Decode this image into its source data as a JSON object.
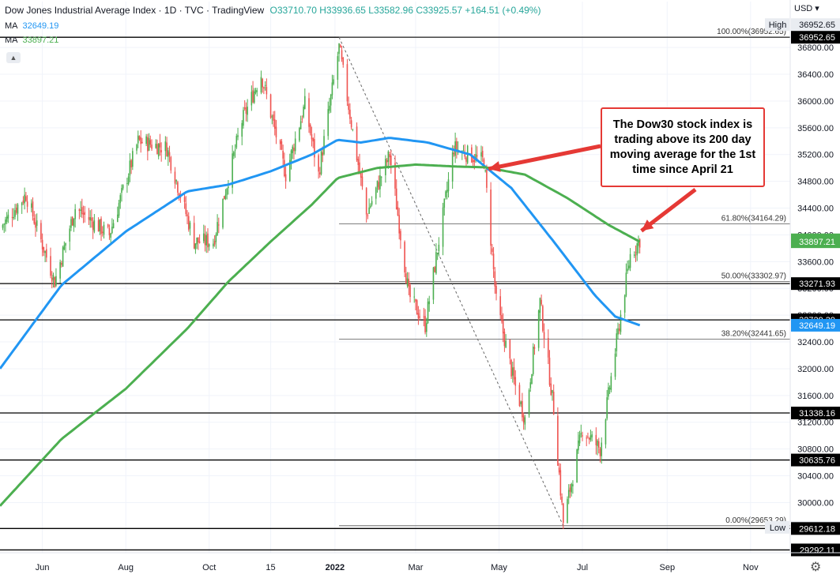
{
  "header": {
    "title": "Dow Jones Industrial Average Index · 1D · TVC · TradingView",
    "ohlc": "O33710.70 H33936.65 L33582.96 C33925.57 +164.51 (+0.49%)",
    "ma1_label": "MA",
    "ma1_value": "32649.19",
    "ma2_label": "MA",
    "ma2_value": "33897.21"
  },
  "currency": "USD",
  "collapse_icon": "chevron-up-icon",
  "settings_icon": "gear-icon",
  "annotation": "The Dow30 stock index is trading above its 200 day moving average for the 1st time since April 21",
  "colors": {
    "up": "#4caf50",
    "down": "#ef5350",
    "ma100": "#2196f3",
    "ma200": "#4caf50",
    "arrow": "#e53935"
  },
  "chart_data": {
    "type": "line",
    "title": "Dow Jones Industrial Average Index",
    "ylim": [
      29250,
      37250
    ],
    "y_ticks": [
      30000,
      30400,
      30800,
      31200,
      31600,
      32000,
      32400,
      32800,
      33200,
      33600,
      34000,
      34400,
      34800,
      35200,
      35600,
      36000,
      36400,
      36800
    ],
    "x_ticks": [
      "Jun",
      "Aug",
      "Oct",
      "15",
      "2022",
      "Mar",
      "May",
      "Jul",
      "Sep",
      "Nov"
    ],
    "series": [
      {
        "name": "MA",
        "role": "ma100",
        "x": [
          "2021-05-01",
          "2021-06-15",
          "2021-08-01",
          "2021-09-15",
          "2021-10-15",
          "2021-11-15",
          "2021-12-15",
          "2022-01-03",
          "2022-01-20",
          "2022-02-10",
          "2022-03-10",
          "2022-04-10",
          "2022-05-10",
          "2022-06-10",
          "2022-07-10",
          "2022-07-25",
          "2022-08-12"
        ],
        "values": [
          32000,
          33250,
          34050,
          34650,
          34750,
          34950,
          35200,
          35420,
          35380,
          35450,
          35380,
          35200,
          34700,
          33900,
          33100,
          32780,
          32649.19
        ]
      },
      {
        "name": "MA",
        "role": "ma200",
        "x": [
          "2021-05-01",
          "2021-06-15",
          "2021-08-01",
          "2021-09-15",
          "2021-10-15",
          "2021-11-15",
          "2021-12-15",
          "2022-01-03",
          "2022-02-01",
          "2022-03-01",
          "2022-04-01",
          "2022-04-21",
          "2022-05-20",
          "2022-06-20",
          "2022-07-20",
          "2022-08-12"
        ],
        "values": [
          29950,
          30950,
          31700,
          32600,
          33300,
          33900,
          34450,
          34850,
          35000,
          35050,
          35020,
          35010,
          34900,
          34550,
          34150,
          33897.21
        ]
      },
      {
        "name": "Dow Jones Industrial Average Index",
        "role": "price",
        "x": [
          "2021-05-01",
          "2021-05-20",
          "2021-06-10",
          "2021-06-25",
          "2021-07-20",
          "2021-08-10",
          "2021-08-31",
          "2021-09-20",
          "2021-10-04",
          "2021-10-25",
          "2021-11-08",
          "2021-11-26",
          "2021-12-10",
          "2021-12-20",
          "2022-01-04",
          "2022-01-24",
          "2022-02-10",
          "2022-02-24",
          "2022-03-08",
          "2022-03-29",
          "2022-04-20",
          "2022-04-29",
          "2022-05-12",
          "2022-05-20",
          "2022-05-31",
          "2022-06-10",
          "2022-06-17",
          "2022-07-01",
          "2022-07-14",
          "2022-07-29",
          "2022-08-05",
          "2022-08-12"
        ],
        "values": [
          34100,
          34600,
          33300,
          34400,
          34000,
          35400,
          35300,
          33900,
          33900,
          35700,
          36400,
          34900,
          35950,
          34900,
          36800,
          34300,
          35200,
          33100,
          32650,
          35300,
          35100,
          33000,
          31800,
          31250,
          33000,
          31400,
          29700,
          31100,
          30800,
          32800,
          33700,
          33925.57
        ]
      }
    ],
    "price_labels": [
      {
        "label": "High",
        "value": 36952.65,
        "text": "36952.65"
      },
      {
        "label": "",
        "value": 36952.65,
        "text": "36952.65"
      },
      {
        "label": "",
        "value": 33925.57,
        "text": "33925.57"
      },
      {
        "label": "",
        "value": 33897.21,
        "text": "33897.21"
      },
      {
        "label": "",
        "value": 33271.93,
        "text": "33271.93"
      },
      {
        "label": "",
        "value": 32729.39,
        "text": "32729.39"
      },
      {
        "label": "",
        "value": 32649.19,
        "text": "32649.19"
      },
      {
        "label": "",
        "value": 31338.16,
        "text": "31338.16"
      },
      {
        "label": "",
        "value": 30635.76,
        "text": "30635.76"
      },
      {
        "label": "Low",
        "value": 29653.29,
        "text": "29653.29"
      },
      {
        "label": "",
        "value": 29612.18,
        "text": "29612.18"
      },
      {
        "label": "",
        "value": 29292.11,
        "text": "29292.11"
      }
    ],
    "horizontal_levels": [
      36952.65,
      33271.93,
      32729.39,
      31338.16,
      30635.76,
      29612.18,
      29292.11
    ],
    "fibonacci": {
      "from_date": "2022-01-04",
      "levels": [
        {
          "label": "100.00%(36952.65)",
          "value": 36952.65
        },
        {
          "label": "61.80%(34164.29)",
          "value": 34164.29
        },
        {
          "label": "50.00%(33302.97)",
          "value": 33302.97
        },
        {
          "label": "38.20%(32441.65)",
          "value": 32441.65
        },
        {
          "label": "0.00%(29653.29)",
          "value": 29653.29
        }
      ]
    },
    "trendline": {
      "from": [
        "2022-01-04",
        36952.65
      ],
      "to": [
        "2022-06-17",
        29653.29
      ]
    }
  }
}
